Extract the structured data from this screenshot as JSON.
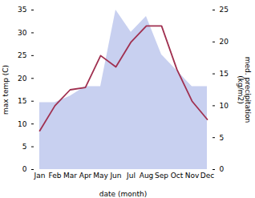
{
  "chart_data": {
    "type": "line",
    "categories": [
      "Jan",
      "Feb",
      "Mar",
      "Apr",
      "May",
      "Jun",
      "Jul",
      "Aug",
      "Sep",
      "Oct",
      "Nov",
      "Dec"
    ],
    "xlabel": "date (month)",
    "ylabel": "max temp (C)",
    "y2label": "med. precipitation\n(kg/m2)",
    "ylim": [
      0,
      35
    ],
    "yticks": [
      0,
      5,
      10,
      15,
      20,
      25,
      30,
      35
    ],
    "y2lim": [
      0,
      25
    ],
    "y2ticks": [
      0,
      5,
      10,
      15,
      20,
      25
    ],
    "series": [
      {
        "type": "area",
        "axis": "y2",
        "color": "#c8d0f0",
        "values": [
          10.5,
          10.5,
          11.5,
          13.0,
          13.0,
          25.0,
          21.5,
          24.0,
          18.0,
          15.5,
          13.0,
          13.0
        ]
      },
      {
        "type": "line",
        "color": "#a03050",
        "values": [
          8.5,
          14.0,
          17.5,
          18.0,
          25.0,
          22.5,
          28.0,
          31.5,
          31.5,
          22.0,
          15.0,
          11.0
        ]
      }
    ]
  }
}
